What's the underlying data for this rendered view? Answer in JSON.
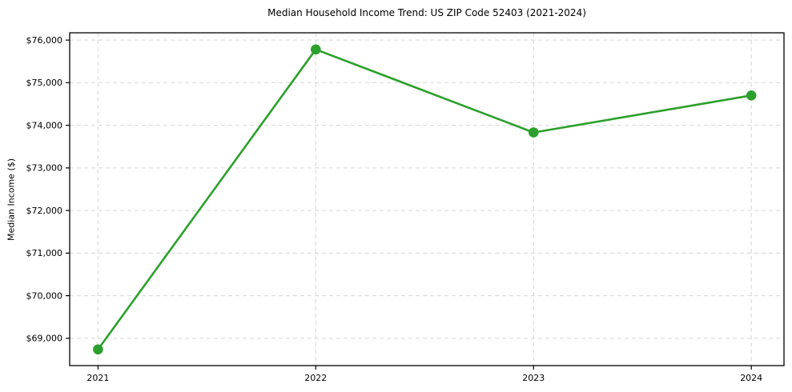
{
  "chart_data": {
    "type": "line",
    "title": "Median Household Income Trend: US ZIP Code 52403 (2021-2024)",
    "xlabel": "",
    "ylabel": "Median Income ($)",
    "x": [
      2021,
      2022,
      2023,
      2024
    ],
    "series": [
      {
        "name": "Median Household Income",
        "values": [
          68740,
          75780,
          73830,
          74700
        ],
        "color": "#2ca02c",
        "marker": "circle",
        "marker_radius": 6.3
      }
    ],
    "xtick_labels": [
      "2021",
      "2022",
      "2023",
      "2024"
    ],
    "yticks": [
      69000,
      70000,
      71000,
      72000,
      73000,
      74000,
      75000,
      76000
    ],
    "ytick_labels": [
      "$69,000",
      "$70,000",
      "$71,000",
      "$72,000",
      "$73,000",
      "$74,000",
      "$75,000",
      "$76,000"
    ],
    "xlim": [
      2020.87,
      2024.15
    ],
    "ylim": [
      68360,
      76170
    ],
    "grid": true,
    "grid_style": "dashed",
    "grid_color": "#d5d5d5",
    "background": "#ffffff",
    "legend": null
  }
}
